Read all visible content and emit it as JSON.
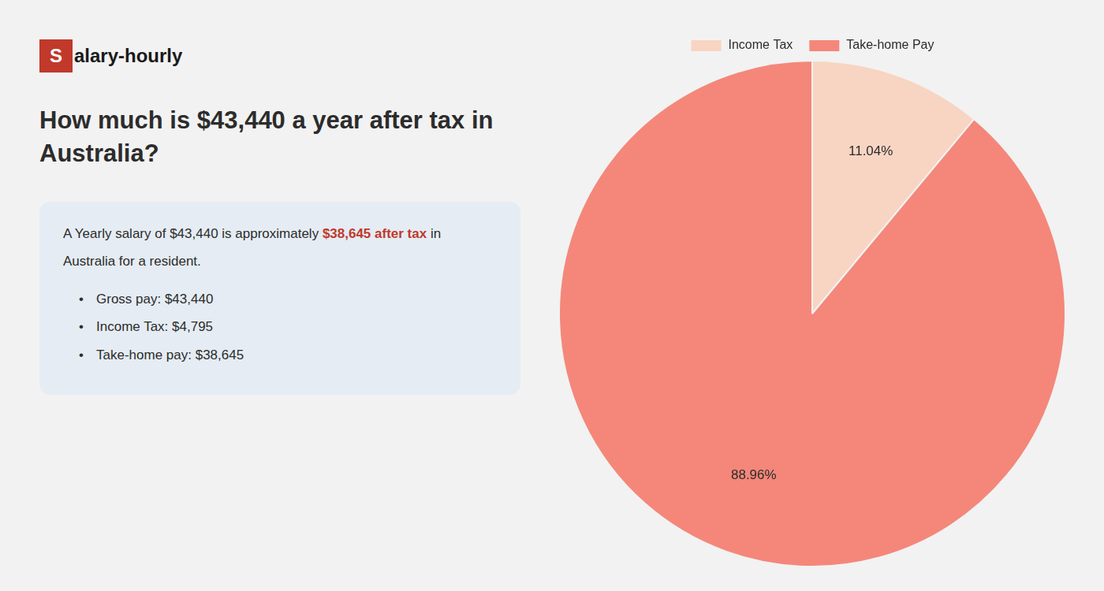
{
  "chart_data": {
    "type": "pie",
    "title": "How much is $43,440 a year after tax in\nAustralia?",
    "categories": [
      "Income Tax",
      "Take-home Pay"
    ],
    "values": [
      11.04,
      88.96
    ],
    "value_labels": [
      "11.04%",
      "88.96%"
    ],
    "colors": [
      "#f8d5c2",
      "#f4877a"
    ],
    "data_labels": true,
    "legend": "top",
    "annotations": [
      [
        {
          "text": "S",
          "color": "#c0392b"
        },
        {
          "text": "alary-hourly"
        }
      ],
      [
        {
          "text": "A Yearly salary of $43,440 is approximately "
        },
        {
          "text": "$38,645 after tax",
          "color": "#c0392b"
        },
        {
          "text": " in"
        }
      ],
      [
        {
          "text": "Australia for a resident."
        }
      ],
      [
        {
          "text": "•"
        },
        {
          "text": "Gross pay: $43,440"
        }
      ],
      [
        {
          "text": "•"
        },
        {
          "text": "Income Tax: $4,795"
        }
      ],
      [
        {
          "text": "•"
        },
        {
          "text": "Take-home pay: $38,645"
        }
      ]
    ]
  }
}
